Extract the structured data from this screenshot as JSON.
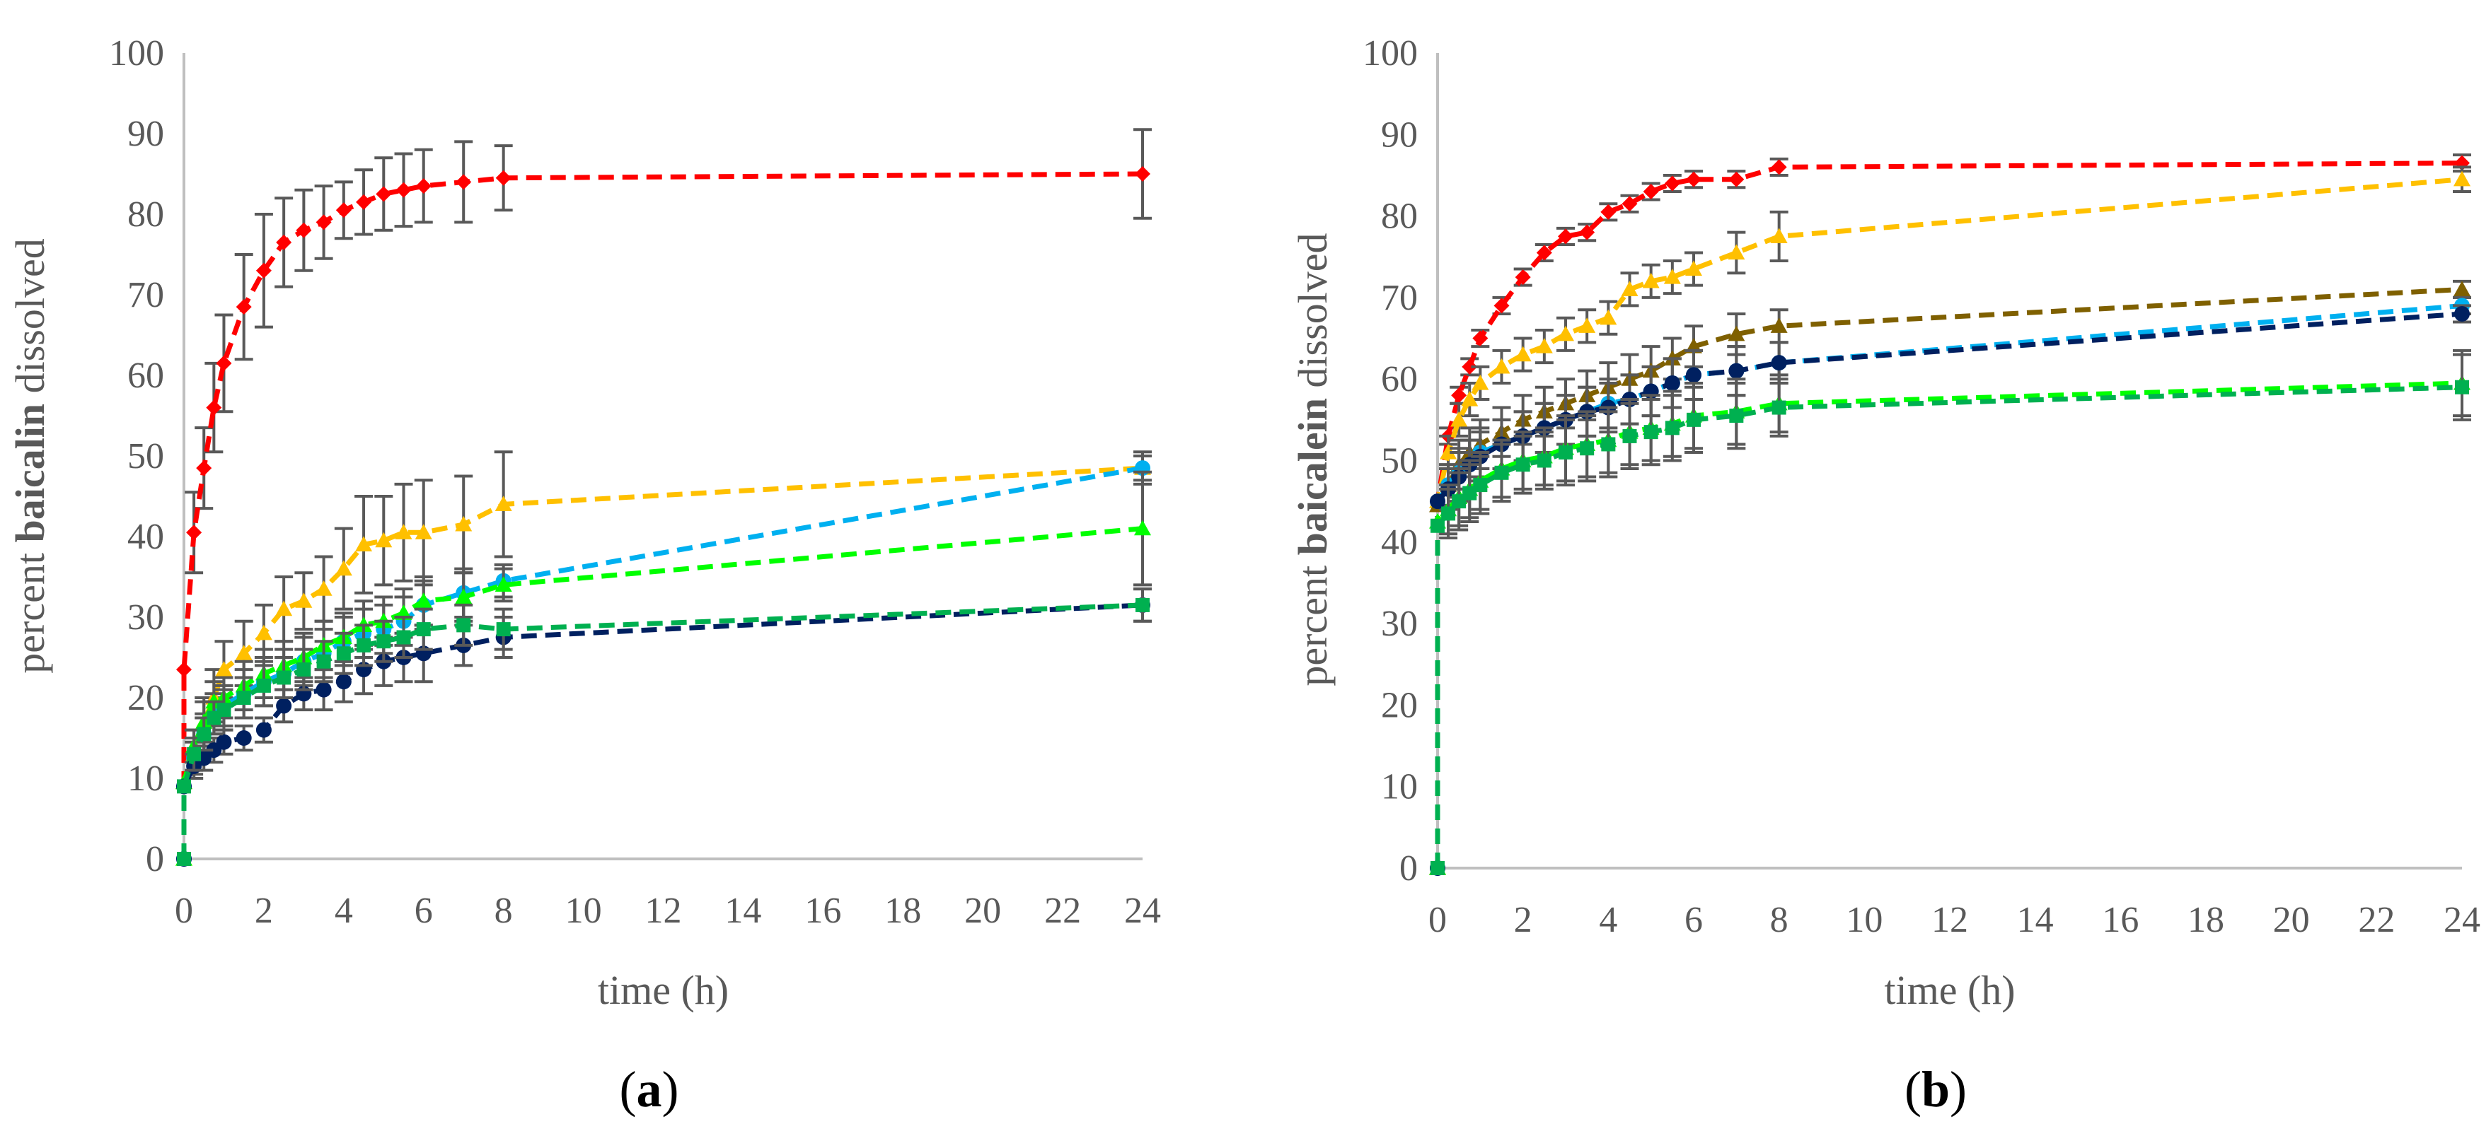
{
  "chart_data": [
    {
      "type": "line",
      "panel": "(a)",
      "panel_letter": "a",
      "xlabel": "time (h)",
      "ylabel_prefix": "percent ",
      "ylabel_bold": "baicalin",
      "ylabel_suffix": " dissolved",
      "x_ticks": [
        0,
        2,
        4,
        6,
        8,
        10,
        12,
        14,
        16,
        18,
        20,
        22,
        24
      ],
      "y_ticks": [
        0,
        10,
        20,
        30,
        40,
        50,
        60,
        70,
        80,
        90,
        100
      ],
      "xlim": [
        0,
        24
      ],
      "ylim": [
        0,
        100
      ],
      "gridlines": false,
      "series": [
        {
          "name": "red",
          "color": "#ff0000",
          "marker": "diamond",
          "x": [
            0,
            0.25,
            0.5,
            0.75,
            1,
            1.5,
            2,
            2.5,
            3,
            3.5,
            4,
            4.5,
            5,
            5.5,
            6,
            7,
            8,
            24
          ],
          "y": [
            23.5,
            40.5,
            48.5,
            56,
            61.5,
            68.5,
            73,
            76.5,
            78,
            79,
            80.5,
            81.5,
            82.5,
            83,
            83.5,
            84,
            84.5,
            85
          ],
          "err": [
            0,
            5,
            5,
            5.5,
            6,
            6.5,
            7,
            5.5,
            5,
            4.5,
            3.5,
            4,
            4.5,
            4.5,
            4.5,
            5,
            4,
            5.5
          ]
        },
        {
          "name": "orange",
          "color": "#ffc000",
          "marker": "triangle",
          "x": [
            0,
            0.25,
            0.5,
            0.75,
            1,
            1.5,
            2,
            2.5,
            3,
            3.5,
            4,
            4.5,
            5,
            5.5,
            6,
            7,
            8,
            24
          ],
          "y": [
            9.5,
            13,
            17,
            20,
            23.5,
            25.5,
            28,
            31,
            32,
            33.5,
            36,
            39,
            39.5,
            40.5,
            40.5,
            41.5,
            44,
            48.5
          ],
          "err": [
            0,
            3,
            3,
            3.5,
            3.5,
            4,
            3.5,
            4,
            3.5,
            4,
            5,
            6,
            5.5,
            6,
            6.5,
            6,
            6.5,
            1.5
          ]
        },
        {
          "name": "light-blue",
          "color": "#00b0f0",
          "marker": "circle",
          "x": [
            0,
            0.25,
            0.5,
            0.75,
            1,
            1.5,
            2,
            2.5,
            3,
            3.5,
            4,
            4.5,
            5,
            5.5,
            6,
            7,
            8,
            24
          ],
          "y": [
            9,
            12.5,
            15.5,
            18,
            19,
            20.5,
            22,
            23,
            24.5,
            25.5,
            27,
            28,
            28.5,
            29.5,
            31.5,
            33,
            34.5,
            48.5
          ],
          "err": [
            0,
            2,
            2.5,
            2.5,
            2.5,
            3,
            3,
            3,
            3,
            3,
            3,
            3,
            3,
            3,
            3,
            3,
            2,
            2
          ]
        },
        {
          "name": "lime-green",
          "color": "#00ff00",
          "marker": "triangle",
          "x": [
            0,
            0.25,
            0.5,
            0.75,
            1,
            1.5,
            2,
            2.5,
            3,
            3.5,
            4,
            4.5,
            5,
            5.5,
            6,
            7,
            8,
            24
          ],
          "y": [
            9.5,
            14,
            17,
            19.5,
            20,
            21.5,
            23,
            24,
            25,
            26.5,
            27.5,
            29,
            29.5,
            30.5,
            32,
            32.5,
            34,
            41
          ],
          "err": [
            0,
            2,
            2.5,
            2.5,
            2.5,
            3,
            3,
            3,
            3,
            3,
            3,
            3,
            3,
            3,
            3,
            3,
            2,
            7
          ]
        },
        {
          "name": "dark-blue",
          "color": "#002060",
          "marker": "circle",
          "x": [
            0,
            0.25,
            0.5,
            0.75,
            1,
            1.5,
            2,
            2.5,
            3,
            3.5,
            4,
            4.5,
            5,
            5.5,
            6,
            7,
            8,
            24
          ],
          "y": [
            9,
            11.5,
            12.5,
            13.5,
            14.5,
            15,
            16,
            19,
            20.5,
            21,
            22,
            23.5,
            24.5,
            25,
            25.5,
            26.5,
            27.5,
            31.5
          ],
          "err": [
            0,
            1.5,
            1.5,
            1.5,
            1.5,
            1.5,
            1.5,
            2,
            2,
            2.5,
            2.5,
            3,
            3,
            3,
            3.5,
            2.5,
            2.5,
            2
          ]
        },
        {
          "name": "green",
          "color": "#00b050",
          "marker": "square",
          "x": [
            0,
            0.25,
            0.5,
            0.75,
            1,
            1.5,
            2,
            2.5,
            3,
            3.5,
            4,
            4.5,
            5,
            5.5,
            6,
            7,
            8,
            24
          ],
          "y": [
            9,
            13,
            15.5,
            17.5,
            18.5,
            20,
            21.5,
            22.5,
            23.5,
            24.5,
            25.5,
            26.5,
            27,
            27.5,
            28.5,
            29,
            28.5,
            31.5
          ],
          "err": [
            0,
            2,
            2,
            2,
            2.5,
            2.5,
            2.5,
            2.5,
            2.5,
            2.5,
            2.5,
            2.5,
            2.5,
            2.5,
            2.5,
            2.5,
            2.5,
            2
          ]
        }
      ]
    },
    {
      "type": "line",
      "panel": "(b)",
      "panel_letter": "b",
      "xlabel": "time (h)",
      "ylabel_prefix": "percent ",
      "ylabel_bold": "baicalein",
      "ylabel_suffix": " dissolved",
      "x_ticks": [
        0,
        2,
        4,
        6,
        8,
        10,
        12,
        14,
        16,
        18,
        20,
        22,
        24
      ],
      "y_ticks": [
        0,
        10,
        20,
        30,
        40,
        50,
        60,
        70,
        80,
        90,
        100
      ],
      "xlim": [
        0,
        24
      ],
      "ylim": [
        0,
        100
      ],
      "gridlines": false,
      "series": [
        {
          "name": "red",
          "color": "#ff0000",
          "marker": "diamond",
          "x": [
            0,
            0.25,
            0.5,
            0.75,
            1,
            1.5,
            2,
            2.5,
            3,
            3.5,
            4,
            4.5,
            5,
            5.5,
            6,
            7,
            8,
            24
          ],
          "y": [
            45,
            53,
            58,
            61.5,
            65,
            69,
            72.5,
            75.5,
            77.5,
            78,
            80.5,
            81.5,
            83,
            84,
            84.5,
            84.5,
            86,
            86.5
          ],
          "err": [
            0,
            1,
            1,
            1,
            1,
            1,
            1,
            1,
            1,
            1,
            1,
            1,
            1,
            1,
            1,
            1,
            1,
            1
          ]
        },
        {
          "name": "orange",
          "color": "#ffc000",
          "marker": "triangle",
          "x": [
            0,
            0.25,
            0.5,
            0.75,
            1,
            1.5,
            2,
            2.5,
            3,
            3.5,
            4,
            4.5,
            5,
            5.5,
            6,
            7,
            8,
            24
          ],
          "y": [
            45,
            51,
            55,
            57.5,
            59.5,
            61.5,
            63,
            64,
            65.5,
            66.5,
            67.5,
            71,
            72,
            72.5,
            73.5,
            75.5,
            77.5,
            84.5
          ],
          "err": [
            0,
            2,
            2,
            2,
            2,
            2,
            2,
            2,
            2,
            2,
            2,
            2,
            2,
            2,
            2,
            2.5,
            3,
            1.5
          ]
        },
        {
          "name": "brown",
          "color": "#7f6000",
          "marker": "triangle",
          "x": [
            0,
            0.25,
            0.5,
            0.75,
            1,
            1.5,
            2,
            2.5,
            3,
            3.5,
            4,
            4.5,
            5,
            5.5,
            6,
            7,
            8,
            24
          ],
          "y": [
            44.5,
            47,
            49.5,
            51,
            52,
            53.5,
            55,
            56,
            57,
            58,
            59,
            60,
            61,
            62.5,
            64,
            65.5,
            66.5,
            71
          ],
          "err": [
            0,
            2.5,
            3,
            3,
            3,
            3,
            3,
            3,
            3,
            3,
            3,
            3,
            3,
            2.5,
            2.5,
            2.5,
            2,
            1
          ]
        },
        {
          "name": "light-blue",
          "color": "#00b0f0",
          "marker": "circle",
          "x": [
            0,
            0.25,
            0.5,
            0.75,
            1,
            1.5,
            2,
            2.5,
            3,
            3.5,
            4,
            4.5,
            5,
            5.5,
            6,
            7,
            8,
            24
          ],
          "y": [
            45,
            47,
            48.5,
            49.5,
            51,
            52,
            53,
            54,
            55,
            56,
            57,
            57.5,
            58.5,
            59.5,
            60.5,
            61,
            62,
            69
          ],
          "err": [
            0,
            2.5,
            3,
            3,
            3,
            3,
            3,
            3,
            3,
            3,
            3,
            3,
            3,
            3,
            3,
            3,
            2.5,
            1
          ]
        },
        {
          "name": "dark-blue",
          "color": "#002060",
          "marker": "circle",
          "x": [
            0,
            0.25,
            0.5,
            0.75,
            1,
            1.5,
            2,
            2.5,
            3,
            3.5,
            4,
            4.5,
            5,
            5.5,
            6,
            7,
            8,
            24
          ],
          "y": [
            45,
            46.5,
            48,
            49.5,
            50.5,
            52,
            53,
            54,
            55,
            56,
            56.5,
            57.5,
            58.5,
            59.5,
            60.5,
            61,
            62,
            68
          ],
          "err": [
            0,
            2.5,
            3,
            3,
            3,
            3,
            3,
            3,
            3,
            3,
            3,
            3,
            3,
            3,
            3,
            3,
            2.5,
            1
          ]
        },
        {
          "name": "lime-green",
          "color": "#00ff00",
          "marker": "triangle",
          "x": [
            0,
            0.25,
            0.5,
            0.75,
            1,
            1.5,
            2,
            2.5,
            3,
            3.5,
            4,
            4.5,
            5,
            5.5,
            6,
            7,
            8,
            24
          ],
          "y": [
            42.5,
            44,
            45.5,
            46.5,
            47.5,
            49,
            50,
            50.5,
            51.5,
            52,
            52.5,
            53.5,
            54,
            54.5,
            55.5,
            56,
            57,
            59.5
          ],
          "err": [
            0,
            3,
            3.5,
            3.5,
            3.5,
            3.5,
            3.5,
            3.5,
            4,
            4,
            4,
            4,
            4,
            4,
            4,
            4,
            3.5,
            4
          ]
        },
        {
          "name": "green",
          "color": "#00b050",
          "marker": "square",
          "x": [
            0,
            0.25,
            0.5,
            0.75,
            1,
            1.5,
            2,
            2.5,
            3,
            3.5,
            4,
            4.5,
            5,
            5.5,
            6,
            7,
            8,
            24
          ],
          "y": [
            42,
            43.5,
            45,
            46,
            47,
            48.5,
            49.5,
            50,
            51,
            51.5,
            52,
            53,
            53.5,
            54,
            55,
            55.5,
            56.5,
            59
          ],
          "err": [
            0,
            3,
            3.5,
            3.5,
            3.5,
            3.5,
            3.5,
            3.5,
            4,
            4,
            4,
            4,
            4,
            4,
            4,
            4,
            3.5,
            4
          ]
        }
      ]
    }
  ]
}
